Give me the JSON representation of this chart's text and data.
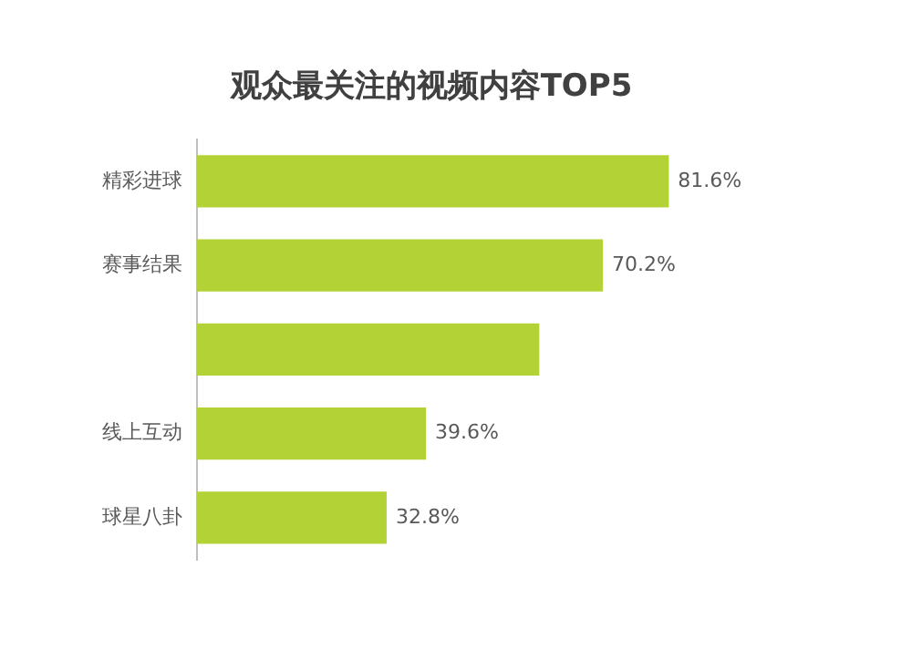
{
  "chart_data": {
    "type": "bar",
    "orientation": "horizontal",
    "title": "观众最关注的视频内容TOP5",
    "categories": [
      "精彩进球",
      "赛事结果",
      null,
      "线上互动",
      "球星八卦"
    ],
    "values": [
      81.6,
      70.2,
      59.2,
      39.6,
      32.8
    ],
    "value_labels": [
      "81.6%",
      "70.2%",
      null,
      "39.6%",
      "32.8%"
    ],
    "color": "#b2d235",
    "tick_labels": "y",
    "grid": false,
    "legend": false
  }
}
